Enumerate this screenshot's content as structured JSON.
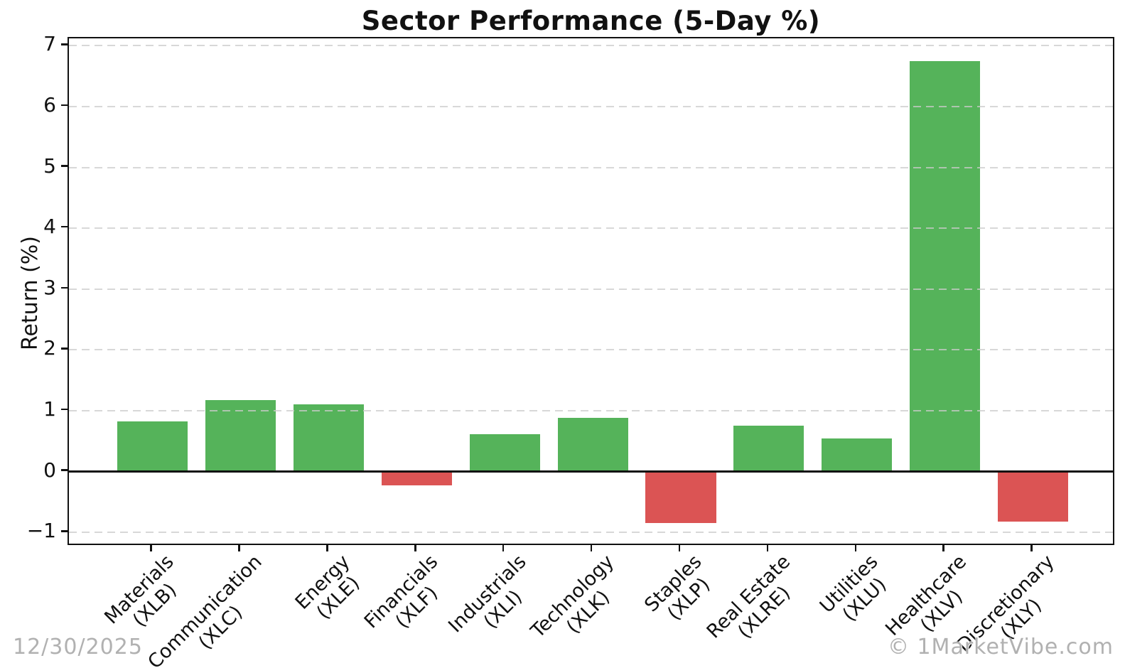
{
  "chart_data": {
    "type": "bar",
    "title": "Sector Performance (5-Day %)",
    "ylabel": "Return (%)",
    "xlabel": "",
    "categories": [
      {
        "sector": "Materials",
        "ticker": "(XLB)"
      },
      {
        "sector": "Communication",
        "ticker": "(XLC)"
      },
      {
        "sector": "Energy",
        "ticker": "(XLE)"
      },
      {
        "sector": "Financials",
        "ticker": "(XLF)"
      },
      {
        "sector": "Industrials",
        "ticker": "(XLI)"
      },
      {
        "sector": "Technology",
        "ticker": "(XLK)"
      },
      {
        "sector": "Staples",
        "ticker": "(XLP)"
      },
      {
        "sector": "Real Estate",
        "ticker": "(XLRE)"
      },
      {
        "sector": "Utilities",
        "ticker": "(XLU)"
      },
      {
        "sector": "Healthcare",
        "ticker": "(XLV)"
      },
      {
        "sector": "Discretionary",
        "ticker": "(XLY)"
      }
    ],
    "values": [
      0.82,
      1.18,
      1.11,
      -0.22,
      0.61,
      0.88,
      -0.85,
      0.75,
      0.54,
      6.75,
      -0.82
    ],
    "yticks": [
      -1,
      0,
      1,
      2,
      3,
      4,
      5,
      6,
      7
    ],
    "ytick_labels": [
      "−1",
      "0",
      "1",
      "2",
      "3",
      "4",
      "5",
      "6",
      "7"
    ],
    "ylim": [
      -1.23,
      7.12
    ],
    "xlim": [
      -0.95,
      10.94
    ],
    "bar_width": 0.8,
    "grid": {
      "show": true,
      "style": "dashed"
    },
    "legend": null,
    "colors": {
      "positive": "#55b35a",
      "negative": "#db5454",
      "zero_line": "#111111",
      "grid": "#cbcbcb",
      "footer_text": "#b1b1b1"
    }
  },
  "footer": {
    "date": "12/30/2025",
    "watermark": "© 1MarketVibe.com"
  }
}
